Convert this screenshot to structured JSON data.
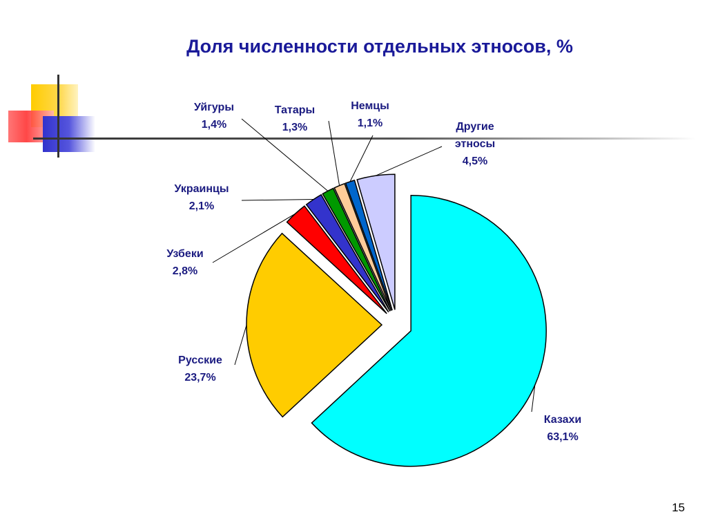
{
  "slide": {
    "title": "Доля численности отдельных этносов, %",
    "page_number": "15"
  },
  "chart_data": {
    "type": "pie",
    "title": "Доля численности отдельных этносов, %",
    "unit": "%",
    "slices": [
      {
        "name": "Казахи",
        "value": 63.1,
        "label": "63,1%",
        "color": "#00ffff",
        "exploded": true
      },
      {
        "name": "Русские",
        "value": 23.7,
        "label": "23,7%",
        "color": "#ffcc00",
        "exploded": true
      },
      {
        "name": "Узбеки",
        "value": 2.8,
        "label": "2,8%",
        "color": "#ff0000",
        "exploded": true
      },
      {
        "name": "Украинцы",
        "value": 2.1,
        "label": "2,1%",
        "color": "#3333cc",
        "exploded": true
      },
      {
        "name": "Уйгуры",
        "value": 1.4,
        "label": "1,4%",
        "color": "#009900",
        "exploded": true
      },
      {
        "name": "Татары",
        "value": 1.3,
        "label": "1,3%",
        "color": "#ffcc99",
        "exploded": true
      },
      {
        "name": "Немцы",
        "value": 1.1,
        "label": "1,1%",
        "color": "#0066cc",
        "exploded": true
      },
      {
        "name": "Другие этносы",
        "value": 4.5,
        "label": "4,5%",
        "color": "#ccccff",
        "exploded": true
      }
    ]
  }
}
